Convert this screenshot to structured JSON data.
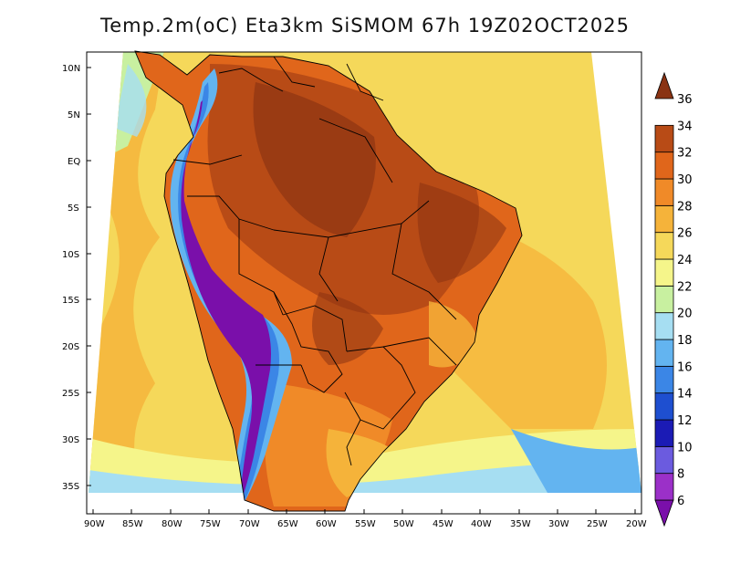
{
  "title": "Temp.2m(oC) Eta3km SiSMOM 67h 19Z02OCT2025",
  "lat_labels": [
    "10N",
    "5N",
    "EQ",
    "5S",
    "10S",
    "15S",
    "20S",
    "25S",
    "30S",
    "35S"
  ],
  "lon_labels": [
    "90W",
    "85W",
    "80W",
    "75W",
    "70W",
    "65W",
    "60W",
    "55W",
    "50W",
    "45W",
    "40W",
    "35W",
    "30W",
    "25W",
    "20W"
  ],
  "colorbar": {
    "labels": [
      "6",
      "8",
      "10",
      "12",
      "14",
      "16",
      "18",
      "20",
      "22",
      "24",
      "26",
      "28",
      "30",
      "32",
      "34",
      "36"
    ],
    "colors": [
      "#7a0faa",
      "#9b30c8",
      "#6b5bdf",
      "#1b1bb5",
      "#1e4fd0",
      "#3b86e6",
      "#63b4f0",
      "#a6def2",
      "#c8f0a0",
      "#f5f58a",
      "#f5d85a",
      "#f5b33a",
      "#f08a28",
      "#e0661b",
      "#b84b16",
      "#8a3313"
    ]
  },
  "map": {
    "fill_colors": {
      "ocean_warm": "#f5b33a",
      "ocean_mild": "#f5d85a",
      "ocean_cool": "#f5f58a",
      "ocean_cold": "#a6def2",
      "land_hot": "#e0661b",
      "land_very_hot": "#b84b16",
      "land_extreme": "#8a3313",
      "andes_cold": "#7a0faa",
      "andes_cool": "#3b86e6",
      "andes_mild": "#63b4f0"
    }
  }
}
